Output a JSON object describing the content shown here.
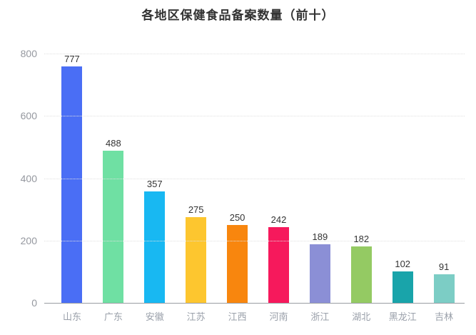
{
  "chart_data": {
    "type": "bar",
    "title": "各地区保健食品备案数量（前十）",
    "categories": [
      "山东",
      "广东",
      "安徽",
      "江苏",
      "江西",
      "河南",
      "浙江",
      "湖北",
      "黑龙江",
      "吉林"
    ],
    "values": [
      777,
      488,
      357,
      275,
      250,
      242,
      189,
      182,
      102,
      91
    ],
    "bar_colors": [
      "#4a6ef5",
      "#6fe0a3",
      "#18b8f2",
      "#fdc62f",
      "#f8860e",
      "#f6195c",
      "#8b8fd6",
      "#94ca63",
      "#19a4aa",
      "#7ccdc5"
    ],
    "xlabel": "",
    "ylabel": "",
    "ylim": [
      0,
      800
    ],
    "yticks": [
      0,
      200,
      400,
      600,
      800
    ],
    "grid": "horizontal-dotted",
    "legend": "none",
    "value_labels": "above-bars"
  },
  "colors": {
    "title_text": "#333333",
    "value_label_text": "#333333",
    "y_tick_text": "#95989f",
    "x_tick_text": "#9aa0aa",
    "gridline": "#e0e0e0",
    "axis_line": "#9a9da3",
    "background": "#ffffff"
  }
}
